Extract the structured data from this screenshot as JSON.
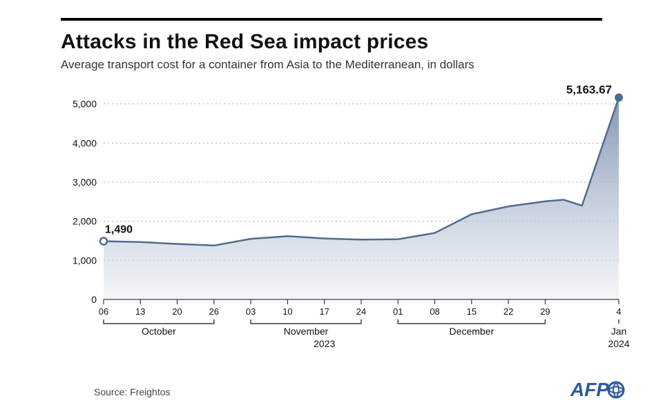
{
  "title": "Attacks in the Red Sea impact prices",
  "subtitle": "Average transport cost for a container from Asia to the Mediterranean, in dollars",
  "source": "Source: Freightos",
  "logo_text": "AFP",
  "chart": {
    "type": "area",
    "background_color": "#ffffff",
    "grid_color": "#a8a8a8",
    "grid_dash": "2 4",
    "axis_color": "#111111",
    "line_color": "#4f6b8f",
    "line_width": 2.5,
    "area_gradient_top": "#6c84a6",
    "area_gradient_bottom": "#e9edf3",
    "font_family": "Arial",
    "ylim": [
      0,
      5400
    ],
    "yticks": [
      0,
      1000,
      2000,
      3000,
      4000,
      5000
    ],
    "ytick_labels": [
      "0",
      "1,000",
      "2,000",
      "3,000",
      "4,000",
      "5,000"
    ],
    "x_labels": [
      "06",
      "13",
      "20",
      "26",
      "03",
      "10",
      "17",
      "24",
      "01",
      "08",
      "15",
      "22",
      "29",
      "4"
    ],
    "month_groups": [
      {
        "label": "October",
        "start_i": 0,
        "end_i": 3
      },
      {
        "label": "November",
        "start_i": 4,
        "end_i": 7
      },
      {
        "label": "December",
        "start_i": 8,
        "end_i": 12
      },
      {
        "label": "Jan",
        "start_i": 13,
        "end_i": 13
      }
    ],
    "year_groups": [
      {
        "label": "2023",
        "start_i": 0,
        "end_i": 12
      },
      {
        "label": "2024",
        "start_i": 13,
        "end_i": 13
      }
    ],
    "values": [
      1490,
      1470,
      1420,
      1380,
      1550,
      1620,
      1560,
      1530,
      1540,
      1700,
      2180,
      2380,
      2510,
      2550,
      2400,
      5163.67
    ],
    "x_positions": [
      0,
      1,
      2,
      3,
      4,
      5,
      6,
      7,
      8,
      9,
      10,
      11,
      12,
      12.5,
      13,
      14
    ],
    "xtick_index_into_positions": [
      0,
      1,
      2,
      3,
      4,
      5,
      6,
      7,
      8,
      9,
      10,
      11,
      12,
      15
    ],
    "callouts": {
      "start": {
        "value_label": "1,490",
        "point_index": 0,
        "marker_fill": "#ffffff",
        "marker_stroke": "#4f6b8f"
      },
      "end": {
        "value_label": "5,163.67",
        "point_index": 15,
        "marker_fill": "#4f6b8f",
        "marker_stroke": "#4f6b8f"
      }
    },
    "label_fontsize": 14,
    "tick_fontsize": 13
  }
}
